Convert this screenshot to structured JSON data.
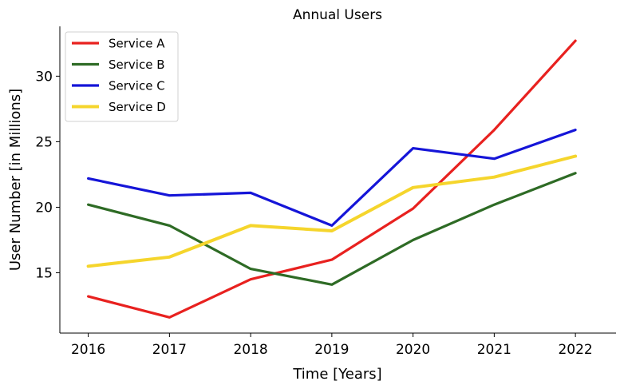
{
  "chart_data": {
    "type": "line",
    "title": "Annual Users",
    "xlabel": "Time [Years]",
    "ylabel": "User Number [in Millions]",
    "x": [
      2016,
      2017,
      2018,
      2019,
      2020,
      2021,
      2022
    ],
    "x_tick_labels": [
      "2016",
      "2017",
      "2018",
      "2019",
      "2020",
      "2021",
      "2022"
    ],
    "y_ticks": [
      15,
      20,
      25,
      30
    ],
    "y_tick_labels": [
      "15",
      "20",
      "25",
      "30"
    ],
    "xlim": [
      2015.65,
      2022.5
    ],
    "ylim": [
      10.4,
      33.8
    ],
    "grid": false,
    "legend_position": "upper-left",
    "series": [
      {
        "name": "Service A",
        "color": "#e8211f",
        "values": [
          13.2,
          11.6,
          14.5,
          16.0,
          19.9,
          25.9,
          32.7
        ]
      },
      {
        "name": "Service B",
        "color": "#2e6b25",
        "values": [
          20.2,
          18.6,
          15.3,
          14.1,
          17.5,
          20.2,
          22.6
        ]
      },
      {
        "name": "Service C",
        "color": "#1515d8",
        "values": [
          22.2,
          20.9,
          21.1,
          18.6,
          24.5,
          23.7,
          25.9
        ]
      },
      {
        "name": "Service D",
        "color": "#f5d52c",
        "values": [
          15.5,
          16.2,
          18.6,
          18.2,
          21.5,
          22.3,
          23.9
        ]
      }
    ]
  }
}
